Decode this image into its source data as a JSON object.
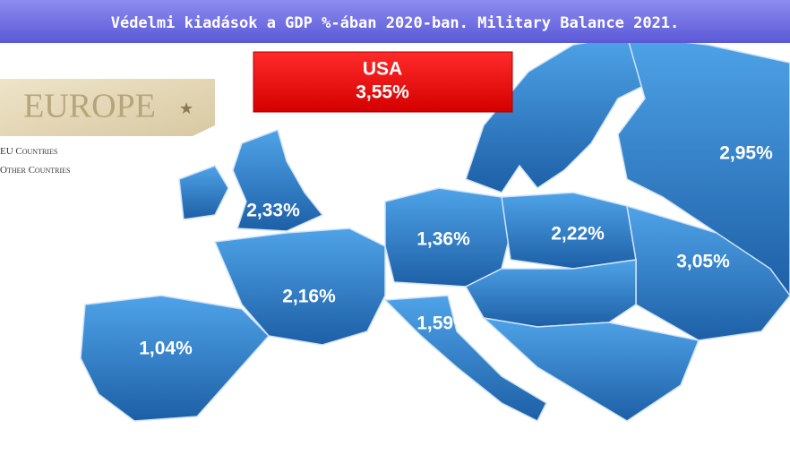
{
  "header": {
    "title": "Védelmi kiadások a GDP %-ában 2020-ban. Military Balance 2021."
  },
  "highlight": {
    "country": "USA",
    "value": "3,55%"
  },
  "badge": {
    "title": "Europe"
  },
  "legend": {
    "items": [
      "EU Countries",
      "Other Countries"
    ]
  },
  "map": {
    "labels": [
      {
        "text": "2,33%"
      },
      {
        "text": "1,36%"
      },
      {
        "text": "2,22%"
      },
      {
        "text": "2,95%"
      },
      {
        "text": "3,05%"
      },
      {
        "text": "2,16%"
      },
      {
        "text": "1,59%"
      },
      {
        "text": "1,04%"
      }
    ]
  }
}
